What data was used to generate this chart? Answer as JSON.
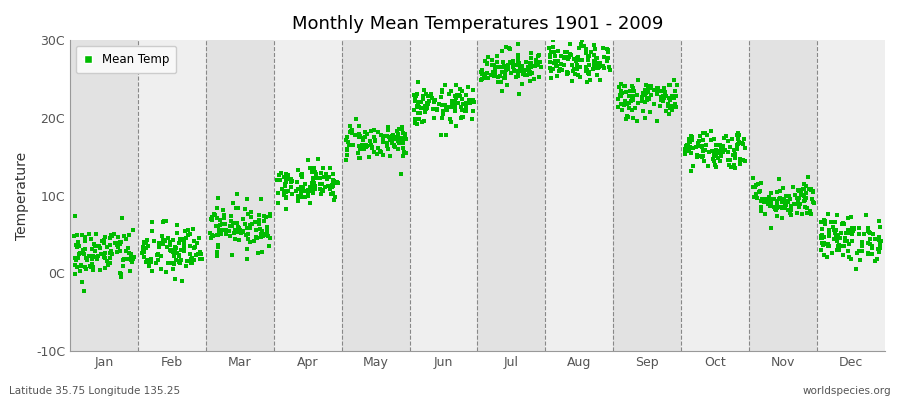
{
  "title": "Monthly Mean Temperatures 1901 - 2009",
  "ylabel": "Temperature",
  "bottom_left": "Latitude 35.75 Longitude 135.25",
  "bottom_right": "worldspecies.org",
  "legend_label": "Mean Temp",
  "marker_color": "#00BB00",
  "bg_color_light": "#EFEFEF",
  "bg_color_dark": "#E2E2E2",
  "figure_color": "#FFFFFF",
  "ylim": [
    -10,
    30
  ],
  "yticks": [
    -10,
    0,
    10,
    20,
    30
  ],
  "ytick_labels": [
    "-10C",
    "0C",
    "10C",
    "20C",
    "30C"
  ],
  "months": [
    "Jan",
    "Feb",
    "Mar",
    "Apr",
    "May",
    "Jun",
    "Jul",
    "Aug",
    "Sep",
    "Oct",
    "Nov",
    "Dec"
  ],
  "mean_temps": [
    2.5,
    2.8,
    6.0,
    11.5,
    17.0,
    21.5,
    26.5,
    27.0,
    22.5,
    16.0,
    9.5,
    4.5
  ],
  "std_temps": [
    1.8,
    1.8,
    1.5,
    1.2,
    1.2,
    1.3,
    1.2,
    1.2,
    1.3,
    1.3,
    1.3,
    1.5
  ],
  "n_years": 109,
  "marker_size": 10,
  "dpi": 100,
  "figsize": [
    9.0,
    4.0
  ]
}
